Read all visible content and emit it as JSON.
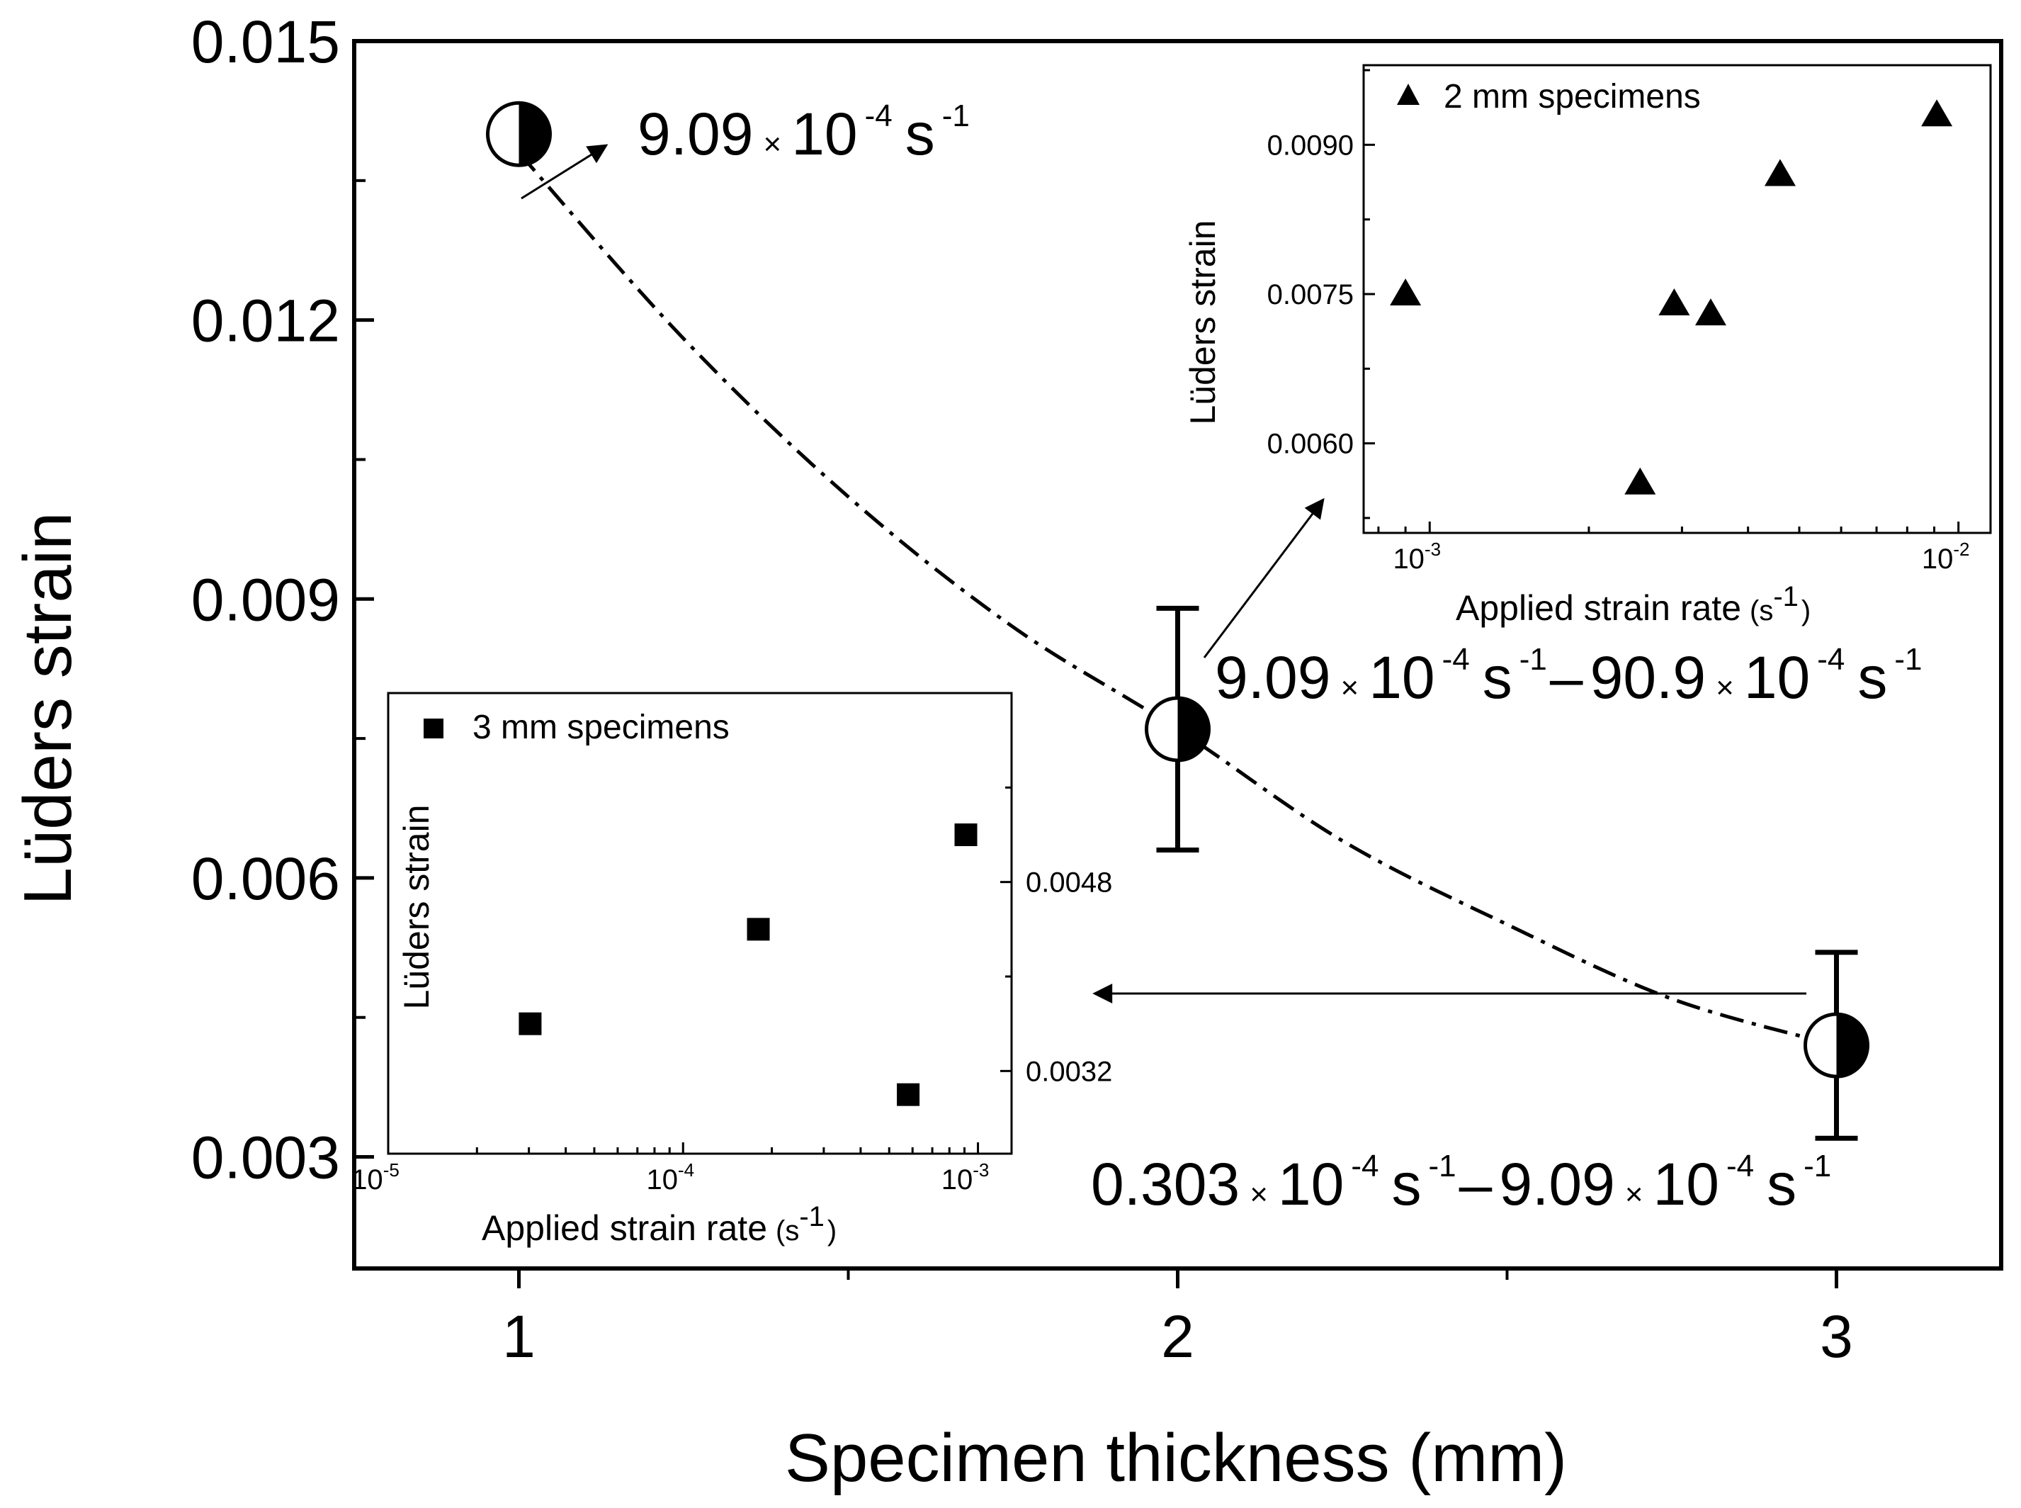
{
  "chart_data": [
    {
      "type": "scatter",
      "id": "main",
      "xlabel": "Specimen thickness (mm)",
      "ylabel": "Lüders strain",
      "xlim": [
        0.75,
        3.25
      ],
      "ylim": [
        0.0018,
        0.015
      ],
      "x_ticks": [
        {
          "value": 1,
          "label": "1"
        },
        {
          "value": 2,
          "label": "2"
        },
        {
          "value": 3,
          "label": "3"
        }
      ],
      "x_minor_ticks": [
        1.5,
        2.5
      ],
      "y_ticks": [
        {
          "value": 0.003,
          "label": "0.003"
        },
        {
          "value": 0.006,
          "label": "0.006"
        },
        {
          "value": 0.009,
          "label": "0.009"
        },
        {
          "value": 0.012,
          "label": "0.012"
        },
        {
          "value": 0.015,
          "label": "0.015"
        }
      ],
      "y_minor_ticks": [
        0.0045,
        0.0075,
        0.0105,
        0.0135
      ],
      "points": [
        {
          "x": 1,
          "y": 0.014,
          "err": null
        },
        {
          "x": 2,
          "y": 0.0076,
          "err": [
            0.0063,
            0.0089
          ]
        },
        {
          "x": 3,
          "y": 0.0042,
          "err": [
            0.0032,
            0.0052
          ]
        }
      ],
      "trend_line": {
        "style": "dash-dot",
        "x": [
          1,
          1.25,
          1.5,
          1.75,
          2,
          2.25,
          2.5,
          2.75,
          3
        ],
        "y": [
          0.0138,
          0.0118,
          0.0101,
          0.0087,
          0.0076,
          0.0064,
          0.0055,
          0.0047,
          0.0042
        ]
      },
      "annotations": [
        {
          "id": "ann1",
          "mantissa": "9.09",
          "times": "×",
          "base": "10",
          "exp": "-4",
          "unit": "s",
          "unit_exp": "-1"
        },
        {
          "id": "ann2",
          "a_mantissa": "9.09",
          "a_times": "×",
          "a_base": "10",
          "a_exp": "-4",
          "a_unit": "s",
          "a_unit_exp": "-1",
          "dash": "–",
          "b_mantissa": "90.9",
          "b_times": "×",
          "b_base": "10",
          "b_exp": "-4",
          "b_unit": "s",
          "b_unit_exp": "-1"
        },
        {
          "id": "ann3",
          "a_mantissa": "0.303",
          "a_times": "×",
          "a_base": "10",
          "a_exp": "-4",
          "a_unit": "s",
          "a_unit_exp": "-1",
          "dash": "–",
          "b_mantissa": "9.09",
          "b_times": "×",
          "b_base": "10",
          "b_exp": "-4",
          "b_unit": "s",
          "b_unit_exp": "-1"
        }
      ]
    },
    {
      "type": "scatter",
      "id": "inset_2mm",
      "legend": "2 mm specimens",
      "marker": "triangle",
      "xscale": "log",
      "xlabel": "Applied strain rate",
      "xlabel_unit": "(s",
      "xlabel_unit_exp": "-1",
      "xlabel_close": ")",
      "ylabel": "Lüders strain",
      "xlim": [
        0.00075,
        0.0115
      ],
      "ylim": [
        0.0051,
        0.0098
      ],
      "x_ticks": [
        {
          "value": 0.001,
          "base": "10",
          "exp": "-3"
        },
        {
          "value": 0.01,
          "base": "10",
          "exp": "-2"
        }
      ],
      "y_ticks": [
        {
          "value": 0.006,
          "label": "0.0060"
        },
        {
          "value": 0.0075,
          "label": "0.0075"
        },
        {
          "value": 0.009,
          "label": "0.0090"
        }
      ],
      "y_minor_ticks": [
        0.00525,
        0.00675,
        0.00825,
        0.00975
      ],
      "points": [
        {
          "x": 0.0009,
          "y": 0.0075
        },
        {
          "x": 0.0025,
          "y": 0.0056
        },
        {
          "x": 0.0029,
          "y": 0.0074
        },
        {
          "x": 0.0034,
          "y": 0.0073
        },
        {
          "x": 0.0046,
          "y": 0.0087
        },
        {
          "x": 0.0091,
          "y": 0.0093
        }
      ]
    },
    {
      "type": "scatter",
      "id": "inset_3mm",
      "legend": "3 mm specimens",
      "marker": "square",
      "xscale": "log",
      "xlabel": "Applied strain rate",
      "xlabel_unit": "(s",
      "xlabel_unit_exp": "-1",
      "xlabel_close": ")",
      "ylabel": "Lüders strain",
      "xlim": [
        1e-05,
        0.0013
      ],
      "ylim": [
        0.0025,
        0.0064
      ],
      "x_ticks": [
        {
          "value": 1e-05,
          "base": "10",
          "exp": "-5"
        },
        {
          "value": 0.0001,
          "base": "10",
          "exp": "-4"
        },
        {
          "value": 0.001,
          "base": "10",
          "exp": "-3"
        }
      ],
      "y_ticks": [
        {
          "value": 0.0032,
          "label": "0.0032"
        },
        {
          "value": 0.0048,
          "label": "0.0048"
        }
      ],
      "y_minor_ticks": [
        0.004,
        0.0056
      ],
      "points": [
        {
          "x": 3.03e-05,
          "y": 0.0036
        },
        {
          "x": 0.00018,
          "y": 0.0044
        },
        {
          "x": 0.00058,
          "y": 0.003
        },
        {
          "x": 0.00091,
          "y": 0.0052
        }
      ]
    }
  ]
}
